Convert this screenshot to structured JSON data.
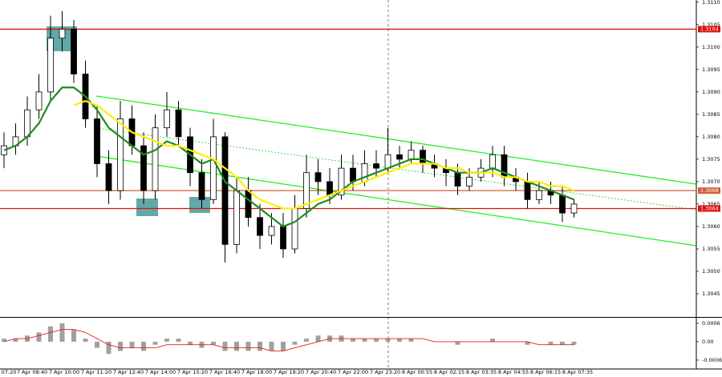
{
  "chart_data": {
    "type": "candlestick",
    "open": [
      1.3076,
      1.3078,
      1.308,
      1.3086,
      1.309,
      1.3102,
      1.3104,
      1.3094,
      1.3084,
      1.3074,
      1.3068,
      1.3084,
      1.3078,
      1.3068,
      1.3082,
      1.3086,
      1.308,
      1.3072,
      1.3066,
      1.308,
      1.3056,
      1.3068,
      1.3062,
      1.3058,
      1.306,
      1.3055,
      1.3064,
      1.3072,
      1.307,
      1.3067,
      1.3073,
      1.307,
      1.3074,
      1.3073,
      1.3076,
      1.3075,
      1.3077,
      1.3074,
      1.3073,
      1.3072,
      1.3069,
      1.3071,
      1.3073,
      1.3076,
      1.3071,
      1.307,
      1.3066,
      1.3068,
      1.3067,
      1.3063
    ],
    "high": [
      1.3081,
      1.3083,
      1.3089,
      1.3094,
      1.3107,
      1.3108,
      1.3106,
      1.3097,
      1.3087,
      1.3077,
      1.3088,
      1.3087,
      1.3081,
      1.3085,
      1.309,
      1.3088,
      1.3082,
      1.3075,
      1.3084,
      1.3081,
      1.3071,
      1.3071,
      1.3065,
      1.3063,
      1.3063,
      1.3067,
      1.3076,
      1.3075,
      1.3073,
      1.3076,
      1.3076,
      1.3077,
      1.3077,
      1.3082,
      1.3078,
      1.3079,
      1.3078,
      1.3076,
      1.3075,
      1.3074,
      1.3073,
      1.3075,
      1.3078,
      1.3078,
      1.3073,
      1.3072,
      1.307,
      1.307,
      1.3069,
      1.3066
    ],
    "low": [
      1.3073,
      1.3076,
      1.3078,
      1.3084,
      1.3088,
      1.3099,
      1.3092,
      1.3082,
      1.3071,
      1.3065,
      1.3066,
      1.3076,
      1.3065,
      1.3066,
      1.308,
      1.3078,
      1.3069,
      1.3064,
      1.3065,
      1.3052,
      1.3054,
      1.306,
      1.3055,
      1.3056,
      1.3053,
      1.3054,
      1.3062,
      1.3067,
      1.3065,
      1.3066,
      1.3068,
      1.3069,
      1.3071,
      1.3072,
      1.3073,
      1.3074,
      1.3072,
      1.3071,
      1.3069,
      1.3067,
      1.3068,
      1.307,
      1.3071,
      1.3069,
      1.3068,
      1.3064,
      1.3065,
      1.3065,
      1.3061,
      1.3062
    ],
    "close": [
      1.3078,
      1.308,
      1.3086,
      1.309,
      1.3102,
      1.3104,
      1.3094,
      1.3084,
      1.3074,
      1.3068,
      1.3084,
      1.3078,
      1.3068,
      1.3082,
      1.3086,
      1.308,
      1.3072,
      1.3066,
      1.308,
      1.3056,
      1.3068,
      1.3062,
      1.3058,
      1.306,
      1.3055,
      1.3064,
      1.3072,
      1.307,
      1.3067,
      1.3073,
      1.307,
      1.3074,
      1.3073,
      1.3076,
      1.3075,
      1.3077,
      1.3074,
      1.3073,
      1.3072,
      1.3069,
      1.3071,
      1.3073,
      1.3076,
      1.3071,
      1.307,
      1.3066,
      1.3068,
      1.3067,
      1.3063,
      1.3065
    ],
    "series": [
      {
        "color": "#1f8a1f",
        "values": [
          1.3077,
          1.3078,
          1.308,
          1.3083,
          1.3088,
          1.3091,
          1.3091,
          1.3089,
          1.3086,
          1.3082,
          1.308,
          1.3078,
          1.3076,
          1.3077,
          1.3079,
          1.3078,
          1.3076,
          1.3074,
          1.3075,
          1.307,
          1.3068,
          1.3066,
          1.3064,
          1.3062,
          1.306,
          1.3061,
          1.3063,
          1.3065,
          1.3066,
          1.3068,
          1.307,
          1.3071,
          1.3072,
          1.3073,
          1.3074,
          1.3075,
          1.3075,
          1.3074,
          1.3073,
          1.3072,
          1.3072,
          1.3072,
          1.3073,
          1.3072,
          1.3071,
          1.307,
          1.3069,
          1.3068,
          1.3067,
          1.3066
        ]
      },
      {
        "color": "#ffee00",
        "values": [
          null,
          null,
          null,
          null,
          null,
          null,
          1.3087,
          1.3088,
          1.3087,
          1.3085,
          1.3083,
          1.3081,
          1.308,
          1.3079,
          1.3078,
          1.3078,
          1.3077,
          1.3076,
          1.3075,
          1.3073,
          1.3071,
          1.3068,
          1.3066,
          1.3065,
          1.3064,
          1.3064,
          1.3065,
          1.3066,
          1.3067,
          1.3068,
          1.3069,
          1.307,
          1.3071,
          1.3072,
          1.3073,
          1.3074,
          1.3074,
          1.3074,
          1.3073,
          1.3073,
          1.3072,
          1.3072,
          1.3072,
          1.3071,
          1.3071,
          1.307,
          1.307,
          1.3069,
          1.3069,
          1.3068
        ]
      }
    ],
    "levels": [
      {
        "value": 1.3104,
        "color": "#e01010"
      },
      {
        "value": 1.3068,
        "color": "#d0603a"
      },
      {
        "value": 1.3064,
        "color": "#e01010"
      }
    ],
    "ylim": [
      1.304,
      1.31105
    ],
    "yticks": [
      {
        "value": 1.311,
        "label": "1.3110"
      },
      1.3105,
      {
        "value": 1.31,
        "label": "1.3100"
      },
      1.3095,
      {
        "value": 1.309,
        "label": "1.3090"
      },
      1.3085,
      {
        "value": 1.308,
        "label": "1.3080"
      },
      1.3075,
      {
        "value": 1.307,
        "label": "1.3070"
      },
      1.3065,
      {
        "value": 1.306,
        "label": "1.3060"
      },
      1.3055,
      {
        "value": 1.305,
        "label": "1.3050"
      },
      1.3045
    ],
    "x_labels": [
      "07:20",
      "7 Apr 08:40",
      "7 Apr 10:00",
      "7 Apr 11:20",
      "7 Apr 12:40",
      "7 Apr 14:00",
      "7 Apr 15:20",
      "7 Apr 16:40",
      "7 Apr 18:00",
      "7 Apr 19:20",
      "7 Apr 20:40",
      "7 Apr 22:00",
      "7 Apr 23:20",
      "8 Apr 00:55",
      "8 Apr 02:15",
      "8 Apr 03:35",
      "8 Apr 04:55",
      "8 Apr 06:15",
      "8 Apr 07:35"
    ],
    "indicator": {
      "type": "bar",
      "color": "#a0a0a0",
      "values": [
        0.0001,
        0.0001,
        0.0002,
        0.0003,
        0.0005,
        0.0006,
        0.0004,
        0.0001,
        -0.0002,
        -0.0004,
        -0.0003,
        -0.0002,
        -0.0003,
        -0.0001,
        0.0001,
        0.0001,
        -0.0001,
        -0.0002,
        -0.0001,
        -0.0003,
        -0.0003,
        -0.0003,
        -0.0003,
        -0.0003,
        -0.0003,
        -0.0001,
        0.0001,
        0.0002,
        0.0002,
        0.0002,
        0.0001,
        0.0001,
        0.0001,
        0.0001,
        0.0001,
        0.0001,
        0,
        0,
        0,
        -0.0001,
        0,
        0,
        0.0001,
        0,
        0,
        -0.0001,
        0,
        -0.0001,
        -0.0001,
        -0.0001
      ],
      "signal": {
        "color": "#e02020",
        "values": [
          0,
          0.0001,
          0.0001,
          0.0002,
          0.0003,
          0.0004,
          0.0004,
          0.0003,
          0.0001,
          -0.0001,
          -0.0002,
          -0.0002,
          -0.0002,
          -0.0002,
          -0.0001,
          -0.0001,
          -0.0001,
          -0.0001,
          -0.0001,
          -0.0002,
          -0.0002,
          -0.0002,
          -0.0002,
          -0.0003,
          -0.0003,
          -0.0002,
          -0.0001,
          0,
          0.0001,
          0.0001,
          0.0001,
          0.0001,
          0.0001,
          0.0001,
          0.0001,
          0.0001,
          0.0001,
          0,
          0,
          0,
          0,
          0,
          0,
          0,
          0,
          0,
          -0.0001,
          -0.0001,
          -0.0001,
          -0.0001
        ]
      },
      "ylim": [
        -0.00089,
        0.00078
      ],
      "yticks": [
        0.0006,
        {
          "value": 0,
          "label": "0.00"
        },
        -0.0006
      ]
    }
  }
}
